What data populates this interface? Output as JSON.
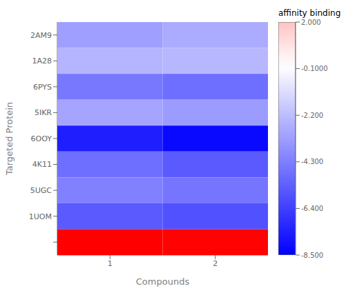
{
  "chart_data": {
    "type": "heatmap",
    "xlabel": "Compounds",
    "ylabel": "Targeted Protein",
    "categories": [
      "1",
      "2"
    ],
    "y_categories": [
      "2AM9",
      "1A28",
      "6PYS",
      "5IKR",
      "6OOY",
      "4K11",
      "5UGC",
      "1UOM",
      null
    ],
    "values": [
      [
        -3.2,
        -2.8
      ],
      [
        -2.5,
        -2.4
      ],
      [
        -4.5,
        -4.8
      ],
      [
        -3.0,
        -3.3
      ],
      [
        -7.5,
        -8.2
      ],
      [
        -4.8,
        -5.5
      ],
      [
        -4.2,
        -4.6
      ],
      [
        -5.5,
        -5.8
      ],
      [
        8.5,
        8.4
      ]
    ],
    "colorbar": {
      "label": "affinity binding",
      "range": [
        -8.5,
        2.0
      ],
      "ticks": [
        {
          "value": 2.0,
          "label": "2.000"
        },
        {
          "value": -0.1,
          "label": "-0.1000"
        },
        {
          "value": -2.2,
          "label": "-2.200"
        },
        {
          "value": -4.3,
          "label": "-4.300"
        },
        {
          "value": -6.4,
          "label": "-6.400"
        },
        {
          "value": -8.5,
          "label": "-8.500"
        }
      ],
      "norm": [
        -8.5,
        8.5
      ],
      "colors": [
        "#0000ff",
        "#ffffff",
        "#ff0000"
      ]
    }
  }
}
